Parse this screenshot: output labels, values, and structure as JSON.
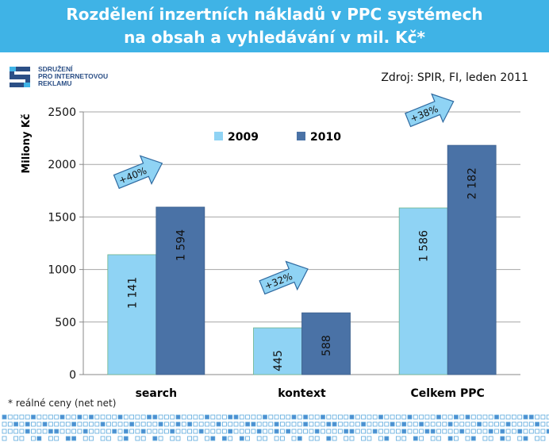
{
  "header": {
    "title_line1": "Rozdělení inzertních nákladů v PPC systémech",
    "title_line2": "na obsah a vyhledávání v mil. Kč*"
  },
  "logo": {
    "icon": "spir-logo-icon",
    "line1": "SDRUŽENÍ",
    "line2": "PRO INTERNETOVOU",
    "line3": "REKLAMU"
  },
  "source": "Zdroj: SPIR, FI, leden 2011",
  "footnote": "* reálné ceny (net net)",
  "colors": {
    "banner": "#3fb3e6",
    "series_2009": "#8fd3f4",
    "series_2010": "#4a72a6",
    "arrow": "#8fd3f4"
  },
  "chart_data": {
    "type": "bar",
    "title": "",
    "ylabel": "Miliony Kč",
    "xlabel": "",
    "ylim": [
      0,
      2500
    ],
    "yticks": [
      0,
      500,
      1000,
      1500,
      2000,
      2500
    ],
    "grid": true,
    "legend_position": "top-center",
    "categories": [
      "search",
      "kontext",
      "Celkem PPC"
    ],
    "series": [
      {
        "name": "2009",
        "values": [
          1141,
          445,
          1586
        ],
        "labels": [
          "1 141",
          "445",
          "1 586"
        ]
      },
      {
        "name": "2010",
        "values": [
          1594,
          588,
          2182
        ],
        "labels": [
          "1 594",
          "588",
          "2 182"
        ]
      }
    ],
    "annotations": [
      "+40%",
      "+32%",
      "+38%"
    ]
  }
}
